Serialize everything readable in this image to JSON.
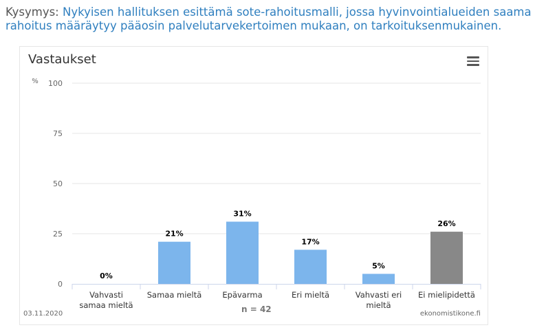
{
  "question": {
    "label": "Kysymys:",
    "text": "Nykyisen hallituksen esittämä sote-rahoitusmalli, jossa hyvinvointialueiden saama rahoitus määräytyy pääosin palvelutarvekertoimen mukaan, on tarkoituksenmukainen."
  },
  "chart_title": "Vastaukset",
  "date": "03.11.2020",
  "credit": "ekonomistikone.fi",
  "n_label": "n = 42",
  "chart_data": {
    "type": "bar",
    "title": "Vastaukset",
    "ylabel": "%",
    "xlabel": "n = 42",
    "ylim": [
      0,
      100
    ],
    "yticks": [
      0,
      25,
      50,
      75,
      100
    ],
    "grid": true,
    "categories": [
      "Vahvasti samaa mieltä",
      "Samaa mieltä",
      "Epävarma",
      "Eri mieltä",
      "Vahvasti eri mieltä",
      "Ei mielipidettä"
    ],
    "category_lines": [
      [
        "Vahvasti",
        "samaa mieltä"
      ],
      [
        "Samaa mieltä"
      ],
      [
        "Epävarma"
      ],
      [
        "Eri mieltä"
      ],
      [
        "Vahvasti eri",
        "mieltä"
      ],
      [
        "Ei mielipidettä"
      ]
    ],
    "values": [
      0,
      21,
      31,
      17,
      5,
      26
    ],
    "data_labels": [
      "0%",
      "21%",
      "31%",
      "17%",
      "5%",
      "26%"
    ],
    "colors": [
      "#7cb5ec",
      "#7cb5ec",
      "#7cb5ec",
      "#7cb5ec",
      "#7cb5ec",
      "#888888"
    ]
  }
}
